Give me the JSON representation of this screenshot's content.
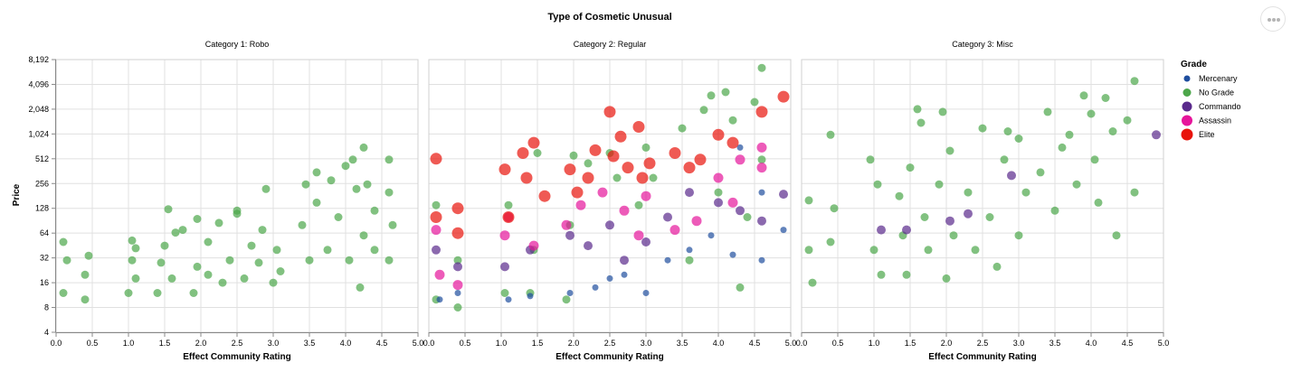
{
  "chart_data": {
    "type": "scatter",
    "title": "Type of Cosmetic Unusual",
    "xlabel": "Effect Community Rating",
    "ylabel": "Price",
    "y_scale": "log2",
    "ylim": [
      4,
      8192
    ],
    "xlim": [
      0,
      5
    ],
    "x_ticks": [
      "0.0",
      "0.5",
      "1.0",
      "1.5",
      "2.0",
      "2.5",
      "3.0",
      "3.5",
      "4.0",
      "4.5",
      "5.0"
    ],
    "y_ticks": [
      "4",
      "8",
      "16",
      "32",
      "64",
      "128",
      "256",
      "512",
      "1,024",
      "2,048",
      "4,096",
      "8,192"
    ],
    "y_tick_values": [
      4,
      8,
      16,
      32,
      64,
      128,
      256,
      512,
      1024,
      2048,
      4096,
      8192
    ],
    "grid": true,
    "legend": {
      "title": "Grade",
      "position": "right",
      "items": [
        {
          "name": "Mercenary",
          "color": "#1f4e9e"
        },
        {
          "name": "No Grade",
          "color": "#4ca64a"
        },
        {
          "name": "Commando",
          "color": "#5a2a8c"
        },
        {
          "name": "Assassin",
          "color": "#e6159b"
        },
        {
          "name": "Elite",
          "color": "#e8140c"
        }
      ]
    },
    "panels": [
      {
        "title": "Category 1: Robo",
        "series": [
          {
            "name": "No Grade",
            "points": [
              [
                0.1,
                12
              ],
              [
                0.1,
                50
              ],
              [
                0.15,
                30
              ],
              [
                0.4,
                10
              ],
              [
                0.4,
                20
              ],
              [
                0.45,
                34
              ],
              [
                1.0,
                12
              ],
              [
                1.05,
                30
              ],
              [
                1.05,
                52
              ],
              [
                1.1,
                18
              ],
              [
                1.1,
                42
              ],
              [
                1.4,
                12
              ],
              [
                1.45,
                28
              ],
              [
                1.5,
                45
              ],
              [
                1.55,
                125
              ],
              [
                1.6,
                18
              ],
              [
                1.65,
                65
              ],
              [
                1.75,
                70
              ],
              [
                1.9,
                12
              ],
              [
                1.95,
                25
              ],
              [
                1.95,
                95
              ],
              [
                2.1,
                20
              ],
              [
                2.1,
                50
              ],
              [
                2.25,
                85
              ],
              [
                2.3,
                16
              ],
              [
                2.4,
                30
              ],
              [
                2.5,
                110
              ],
              [
                2.5,
                120
              ],
              [
                2.6,
                18
              ],
              [
                2.7,
                45
              ],
              [
                2.8,
                28
              ],
              [
                2.85,
                70
              ],
              [
                2.9,
                220
              ],
              [
                3.0,
                16
              ],
              [
                3.05,
                40
              ],
              [
                3.1,
                22
              ],
              [
                3.4,
                80
              ],
              [
                3.45,
                250
              ],
              [
                3.5,
                30
              ],
              [
                3.6,
                150
              ],
              [
                3.6,
                350
              ],
              [
                3.75,
                40
              ],
              [
                3.8,
                280
              ],
              [
                3.9,
                100
              ],
              [
                4.0,
                420
              ],
              [
                4.05,
                30
              ],
              [
                4.1,
                500
              ],
              [
                4.15,
                220
              ],
              [
                4.2,
                14
              ],
              [
                4.25,
                60
              ],
              [
                4.25,
                700
              ],
              [
                4.3,
                250
              ],
              [
                4.4,
                40
              ],
              [
                4.4,
                120
              ],
              [
                4.6,
                30
              ],
              [
                4.6,
                200
              ],
              [
                4.6,
                500
              ],
              [
                4.65,
                80
              ]
            ]
          }
        ]
      },
      {
        "title": "Category 2: Regular",
        "series": [
          {
            "name": "No Grade",
            "points": [
              [
                0.1,
                140
              ],
              [
                0.1,
                10
              ],
              [
                0.4,
                8
              ],
              [
                0.4,
                30
              ],
              [
                1.05,
                12
              ],
              [
                1.1,
                140
              ],
              [
                1.4,
                12
              ],
              [
                1.45,
                40
              ],
              [
                1.5,
                600
              ],
              [
                1.9,
                10
              ],
              [
                1.95,
                80
              ],
              [
                2.0,
                560
              ],
              [
                2.2,
                450
              ],
              [
                2.5,
                600
              ],
              [
                2.6,
                300
              ],
              [
                2.9,
                140
              ],
              [
                3.0,
                700
              ],
              [
                3.1,
                300
              ],
              [
                3.5,
                1200
              ],
              [
                3.6,
                30
              ],
              [
                3.8,
                2000
              ],
              [
                3.9,
                3000
              ],
              [
                4.0,
                200
              ],
              [
                4.1,
                3300
              ],
              [
                4.2,
                1500
              ],
              [
                4.3,
                14
              ],
              [
                4.4,
                100
              ],
              [
                4.5,
                2500
              ],
              [
                4.6,
                6500
              ],
              [
                4.6,
                500
              ]
            ]
          },
          {
            "name": "Mercenary",
            "points": [
              [
                0.15,
                10
              ],
              [
                0.4,
                12
              ],
              [
                1.1,
                10
              ],
              [
                1.4,
                11
              ],
              [
                1.95,
                12
              ],
              [
                2.3,
                14
              ],
              [
                2.5,
                18
              ],
              [
                2.7,
                20
              ],
              [
                3.0,
                12
              ],
              [
                3.3,
                30
              ],
              [
                3.6,
                40
              ],
              [
                3.9,
                60
              ],
              [
                4.2,
                35
              ],
              [
                4.3,
                700
              ],
              [
                4.6,
                30
              ],
              [
                4.6,
                200
              ],
              [
                4.9,
                70
              ]
            ]
          },
          {
            "name": "Commando",
            "points": [
              [
                0.1,
                40
              ],
              [
                0.4,
                25
              ],
              [
                1.05,
                25
              ],
              [
                1.4,
                40
              ],
              [
                1.95,
                60
              ],
              [
                2.2,
                45
              ],
              [
                2.5,
                80
              ],
              [
                2.7,
                30
              ],
              [
                3.0,
                50
              ],
              [
                3.3,
                100
              ],
              [
                3.6,
                200
              ],
              [
                4.0,
                150
              ],
              [
                4.3,
                120
              ],
              [
                4.6,
                90
              ],
              [
                4.9,
                190
              ]
            ]
          },
          {
            "name": "Assassin",
            "points": [
              [
                0.1,
                70
              ],
              [
                0.15,
                20
              ],
              [
                0.4,
                15
              ],
              [
                1.05,
                60
              ],
              [
                1.1,
                100
              ],
              [
                1.45,
                45
              ],
              [
                1.9,
                80
              ],
              [
                2.1,
                140
              ],
              [
                2.4,
                200
              ],
              [
                2.7,
                120
              ],
              [
                2.9,
                60
              ],
              [
                3.0,
                180
              ],
              [
                3.4,
                70
              ],
              [
                3.7,
                90
              ],
              [
                4.0,
                300
              ],
              [
                4.2,
                150
              ],
              [
                4.3,
                500
              ],
              [
                4.6,
                400
              ],
              [
                4.6,
                700
              ]
            ]
          },
          {
            "name": "Elite",
            "points": [
              [
                0.1,
                512
              ],
              [
                0.1,
                100
              ],
              [
                0.4,
                128
              ],
              [
                0.4,
                64
              ],
              [
                1.05,
                380
              ],
              [
                1.1,
                100
              ],
              [
                1.3,
                600
              ],
              [
                1.35,
                300
              ],
              [
                1.45,
                800
              ],
              [
                1.6,
                180
              ],
              [
                1.95,
                380
              ],
              [
                2.05,
                200
              ],
              [
                2.2,
                300
              ],
              [
                2.3,
                650
              ],
              [
                2.5,
                1900
              ],
              [
                2.55,
                550
              ],
              [
                2.65,
                950
              ],
              [
                2.75,
                400
              ],
              [
                2.9,
                1250
              ],
              [
                2.95,
                300
              ],
              [
                3.05,
                450
              ],
              [
                3.4,
                600
              ],
              [
                3.6,
                400
              ],
              [
                3.75,
                500
              ],
              [
                4.0,
                1000
              ],
              [
                4.2,
                800
              ],
              [
                4.6,
                1900
              ],
              [
                4.9,
                2900
              ]
            ]
          }
        ]
      },
      {
        "title": "Category 3: Misc",
        "series": [
          {
            "name": "No Grade",
            "points": [
              [
                0.1,
                160
              ],
              [
                0.1,
                40
              ],
              [
                0.15,
                16
              ],
              [
                0.4,
                1000
              ],
              [
                0.4,
                50
              ],
              [
                0.45,
                128
              ],
              [
                0.95,
                500
              ],
              [
                1.0,
                40
              ],
              [
                1.05,
                250
              ],
              [
                1.1,
                20
              ],
              [
                1.35,
                180
              ],
              [
                1.4,
                60
              ],
              [
                1.45,
                20
              ],
              [
                1.5,
                400
              ],
              [
                1.6,
                2048
              ],
              [
                1.65,
                1400
              ],
              [
                1.7,
                100
              ],
              [
                1.75,
                40
              ],
              [
                1.9,
                250
              ],
              [
                1.95,
                1900
              ],
              [
                2.0,
                18
              ],
              [
                2.05,
                640
              ],
              [
                2.1,
                60
              ],
              [
                2.3,
                200
              ],
              [
                2.4,
                40
              ],
              [
                2.5,
                1200
              ],
              [
                2.6,
                100
              ],
              [
                2.7,
                25
              ],
              [
                2.8,
                500
              ],
              [
                2.85,
                1100
              ],
              [
                3.0,
                900
              ],
              [
                3.0,
                60
              ],
              [
                3.1,
                200
              ],
              [
                3.3,
                350
              ],
              [
                3.4,
                1900
              ],
              [
                3.5,
                120
              ],
              [
                3.6,
                700
              ],
              [
                3.7,
                1000
              ],
              [
                3.8,
                250
              ],
              [
                3.9,
                3000
              ],
              [
                4.0,
                1800
              ],
              [
                4.05,
                500
              ],
              [
                4.1,
                150
              ],
              [
                4.2,
                2800
              ],
              [
                4.3,
                1100
              ],
              [
                4.35,
                60
              ],
              [
                4.5,
                1500
              ],
              [
                4.6,
                4500
              ],
              [
                4.6,
                200
              ]
            ]
          },
          {
            "name": "Commando",
            "points": [
              [
                1.1,
                70
              ],
              [
                1.45,
                70
              ],
              [
                2.05,
                90
              ],
              [
                2.3,
                110
              ],
              [
                2.9,
                320
              ],
              [
                4.9,
                1000
              ]
            ]
          }
        ]
      }
    ]
  }
}
